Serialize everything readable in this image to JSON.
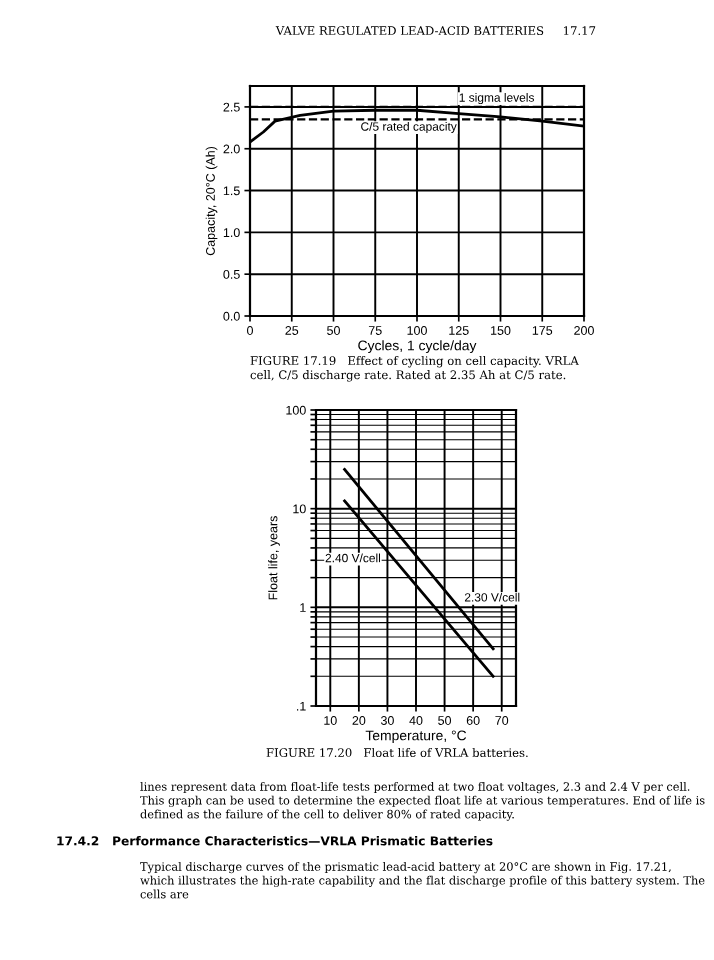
{
  "chart_data": [
    {
      "type": "line",
      "xlabel": "Cycles, 1 cycle/day",
      "ylabel": "Capacity, 20°C (Ah)",
      "x": [
        0,
        8,
        15,
        30,
        50,
        75,
        100,
        125,
        150,
        175,
        200
      ],
      "series": [
        {
          "color": "#000000",
          "values": [
            2.08,
            2.2,
            2.33,
            2.4,
            2.45,
            2.46,
            2.46,
            2.42,
            2.38,
            2.33,
            2.27
          ]
        }
      ],
      "xlim": [
        0,
        200
      ],
      "xticks": [
        0,
        25,
        50,
        75,
        100,
        125,
        150,
        175,
        200
      ],
      "ylim": [
        0,
        2.75
      ],
      "yticks": [
        {
          "value": 0,
          "label": "0.0"
        },
        0.5,
        {
          "value": 1,
          "label": "1.0"
        },
        1.5,
        {
          "value": 2,
          "label": "2.0"
        },
        2.5
      ],
      "grid": true,
      "line_style": "solid",
      "marker": "none",
      "ref_lines": [
        {
          "axis": "y",
          "value": 2.5,
          "line_style": "dashed",
          "color": "#000000"
        },
        {
          "axis": "y",
          "value": 2.35,
          "label": "C/5 rated capacity",
          "line_style": "dashed",
          "color": "#000000"
        }
      ],
      "annotations": [
        {
          "text": "1 sigma levels",
          "x": 125,
          "y": 2.6
        },
        "VALVE REGULATED LEAD-ACID BATTERIES     17.17",
        "FIGURE 17.19   Effect of cycling on cell capacity. VRLA cell, C/5 discharge rate. Rated at 2.35 Ah at C/5 rate."
      ]
    },
    {
      "type": "line",
      "xlabel": "Temperature, °C",
      "ylabel": "Float life, years",
      "log": "y",
      "x": [
        15,
        67
      ],
      "series": [
        {
          "name": "2.30 V/cell",
          "color": "#000000",
          "values": [
            25,
            0.38
          ]
        },
        {
          "name": "2.40 V/cell",
          "color": "#000000",
          "values": [
            12,
            0.2
          ]
        }
      ],
      "xlim": [
        5,
        75
      ],
      "xticks": [
        10,
        20,
        30,
        40,
        50,
        60,
        70
      ],
      "ylim": [
        0.1,
        100
      ],
      "yticks": [
        {
          "value": 0.1,
          "label": ".1"
        },
        1,
        10,
        100
      ],
      "grid": true,
      "line_style": "solid",
      "marker": "none",
      "annotations": [
        "FIGURE 17.20   Float life of VRLA batteries.",
        "lines represent data from float-life tests performed at two float voltages, 2.3 and 2.4 V per cell. This graph can be used to determine the expected float life at various temperatures. End of life is defined as the failure of the cell to deliver 80% of rated capacity.",
        "17.4.2   Performance Characteristics—VRLA Prismatic Batteries",
        "Typical discharge curves of the prismatic lead-acid battery at 20°C are shown in Fig. 17.21, which illustrates the high-rate capability and the flat discharge profile of this battery system. The cells are"
      ]
    }
  ]
}
